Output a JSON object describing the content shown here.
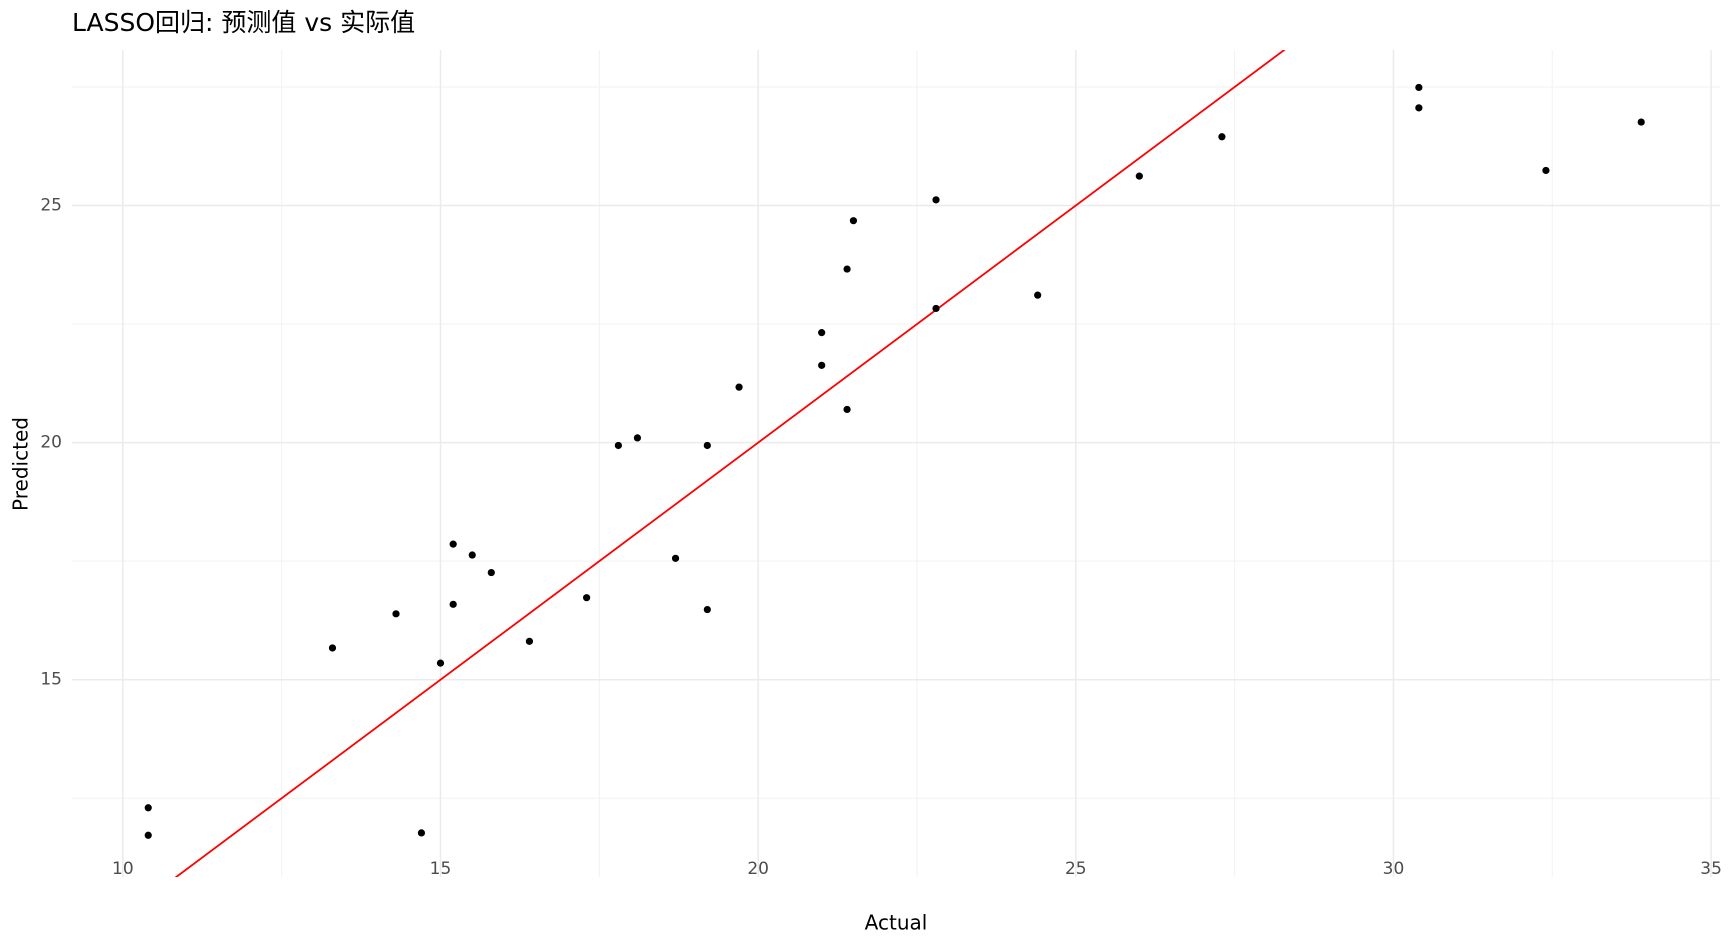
{
  "chart_data": {
    "type": "scatter",
    "title": "LASSO回归: 预测值 vs 实际值",
    "x_label": "Actual",
    "y_label": "Predicted",
    "x": [
      10.4,
      10.4,
      14.7,
      13.3,
      14.3,
      15.0,
      15.2,
      15.2,
      15.5,
      15.8,
      16.4,
      17.3,
      17.8,
      18.1,
      18.7,
      19.2,
      19.2,
      19.7,
      21.0,
      21.0,
      21.4,
      21.4,
      21.5,
      22.8,
      22.8,
      24.4,
      26.0,
      27.3,
      30.4,
      30.4,
      32.4,
      33.9
    ],
    "values": [
      12.3,
      11.72,
      11.77,
      15.67,
      16.39,
      15.35,
      17.86,
      16.59,
      17.63,
      17.26,
      15.81,
      16.73,
      19.94,
      20.1,
      17.56,
      19.94,
      16.48,
      21.17,
      22.32,
      21.63,
      23.66,
      20.7,
      24.68,
      25.12,
      22.83,
      23.11,
      25.62,
      26.45,
      27.49,
      27.06,
      25.74,
      26.76
    ],
    "color": "#000000",
    "reference_line": {
      "slope": 1,
      "intercept": 0,
      "color": "#ff0000"
    },
    "xlim": [
      9.2,
      35.14
    ],
    "ylim": [
      10.84,
      28.28
    ],
    "xticks": [
      10,
      15,
      20,
      25,
      30,
      35
    ],
    "yticks": [
      15,
      20,
      25
    ],
    "grid": true
  }
}
